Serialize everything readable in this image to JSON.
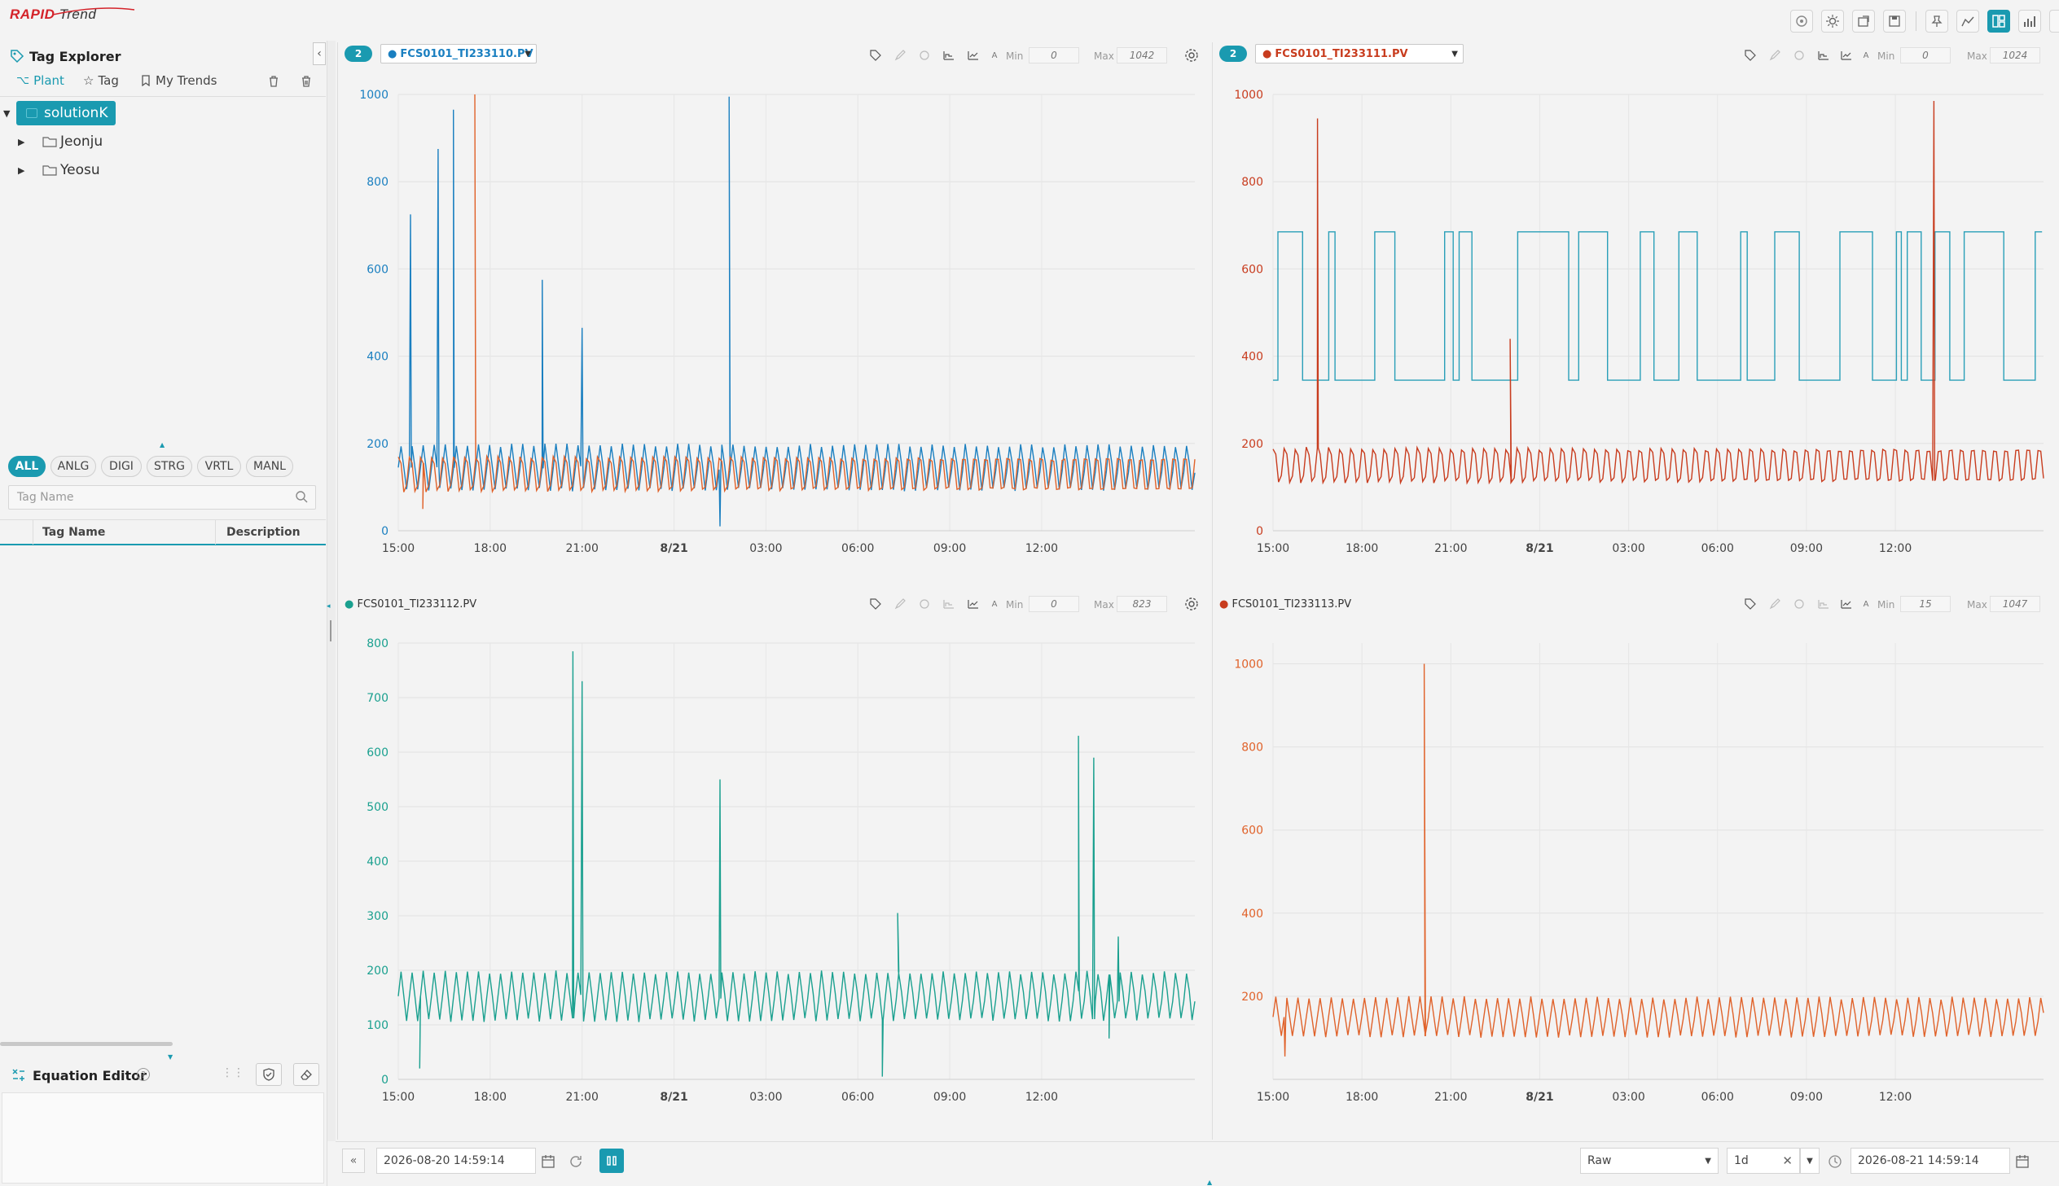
{
  "app": {
    "brand_a": "RAPID",
    "brand_b": "Trend"
  },
  "sidebar": {
    "title": "Tag Explorer",
    "tabs": [
      {
        "label": "Plant"
      },
      {
        "label": "Tag"
      },
      {
        "label": "My Trends"
      }
    ],
    "tree": {
      "root": "solutionK",
      "children": [
        "Jeonju",
        "Yeosu"
      ]
    },
    "chips": [
      "ALL",
      "ANLG",
      "DIGI",
      "STRG",
      "VRTL",
      "MANL"
    ],
    "search_placeholder": "Tag Name",
    "table": {
      "col1": "Tag Name",
      "col2": "Description"
    },
    "equation_editor": "Equation Editor"
  },
  "panels": [
    {
      "count": "2",
      "tag": "FCS0101_TI233110.PV",
      "tag_color": "#1a7fc0",
      "min_label": "Min",
      "min": "0",
      "max_label": "Max",
      "max": "1042"
    },
    {
      "count": "2",
      "tag": "FCS0101_TI233111.PV",
      "tag_color": "#c83c1e",
      "min_label": "Min",
      "min": "0",
      "max_label": "Max",
      "max": "1024"
    },
    {
      "tag": "FCS0101_TI233112.PV",
      "tag_color": "#1aa08f",
      "min_label": "Min",
      "min": "0",
      "max_label": "Max",
      "max": "823"
    },
    {
      "tag": "FCS0101_TI233113.PV",
      "tag_color": "#e0622a",
      "min_label": "Min",
      "min": "15",
      "max_label": "Max",
      "max": "1047"
    }
  ],
  "chart_data": [
    {
      "type": "line",
      "x_ticks": [
        "15:00",
        "18:00",
        "21:00",
        "8/21",
        "03:00",
        "06:00",
        "09:00",
        "12:00"
      ],
      "y_ticks": [
        "0",
        "200",
        "400",
        "600",
        "800",
        "1000"
      ],
      "ylim": [
        0,
        1000
      ],
      "axis_color": "#1a7fc0",
      "series": [
        {
          "color": "#1a7fc0",
          "base_low": 90,
          "base_high": 200,
          "spikes": [
            [
              0.4,
              725
            ],
            [
              1.3,
              875
            ],
            [
              1.8,
              965
            ],
            [
              4.7,
              575
            ],
            [
              6.0,
              465
            ],
            [
              10.5,
              10
            ],
            [
              10.8,
              995
            ]
          ]
        },
        {
          "color": "#e0622a",
          "base_low": 80,
          "base_high": 180,
          "spikes": [
            [
              2.5,
              1000
            ],
            [
              0.8,
              50
            ]
          ]
        }
      ]
    },
    {
      "type": "line",
      "x_ticks": [
        "15:00",
        "18:00",
        "21:00",
        "8/21",
        "03:00",
        "06:00",
        "09:00",
        "12:00"
      ],
      "y_ticks": [
        "0",
        "200",
        "400",
        "600",
        "800",
        "1000"
      ],
      "ylim": [
        0,
        1000
      ],
      "axis_color": "#c83c1e",
      "series": [
        {
          "color": "#2a9fb8",
          "kind": "square",
          "low": 345,
          "high": 685
        },
        {
          "color": "#c83c1e",
          "base_low": 100,
          "base_high": 200,
          "spikes": [
            [
              1.5,
              945
            ],
            [
              8.0,
              440
            ],
            [
              22.3,
              985
            ]
          ]
        }
      ]
    },
    {
      "type": "line",
      "x_ticks": [
        "15:00",
        "18:00",
        "21:00",
        "8/21",
        "03:00",
        "06:00",
        "09:00",
        "12:00"
      ],
      "y_ticks": [
        "0",
        "100",
        "200",
        "300",
        "400",
        "500",
        "600",
        "700",
        "800"
      ],
      "ylim": [
        0,
        800
      ],
      "axis_color": "#1aa08f",
      "series": [
        {
          "color": "#1aa08f",
          "base_low": 105,
          "base_high": 200,
          "spikes": [
            [
              0.7,
              20
            ],
            [
              5.7,
              785
            ],
            [
              6.0,
              730
            ],
            [
              10.5,
              550
            ],
            [
              15.8,
              5
            ],
            [
              16.3,
              305
            ],
            [
              22.2,
              630
            ],
            [
              22.7,
              590
            ],
            [
              23.2,
              75
            ],
            [
              23.5,
              262
            ]
          ]
        }
      ]
    },
    {
      "type": "line",
      "x_ticks": [
        "15:00",
        "18:00",
        "21:00",
        "8/21",
        "03:00",
        "06:00",
        "09:00",
        "12:00"
      ],
      "y_ticks": [
        "200",
        "400",
        "600",
        "800",
        "1000"
      ],
      "ylim": [
        0,
        1050
      ],
      "axis_color": "#e0622a",
      "series": [
        {
          "color": "#e0622a",
          "base_low": 100,
          "base_high": 200,
          "spikes": [
            [
              5.1,
              1000
            ],
            [
              0.4,
              55
            ]
          ]
        }
      ]
    }
  ],
  "footer": {
    "start": "2026-08-20 14:59:14",
    "end": "2026-08-21 14:59:14",
    "mode": "Raw",
    "duration": "1d"
  }
}
